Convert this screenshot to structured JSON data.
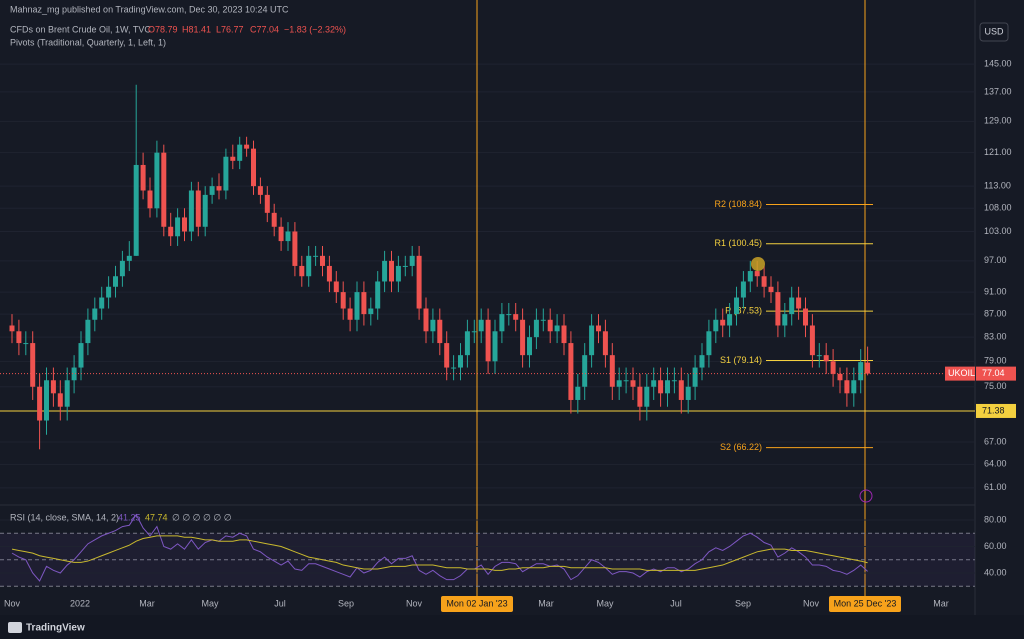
{
  "header": {
    "publisher": "Mahnaz_mg published on TradingView.com, Dec 30, 2023 10:24 UTC",
    "brand": "TradingView"
  },
  "chart_data": [
    {
      "type": "candlestick",
      "title": "CFDs on Brent Crude Oil, 1W, TVC",
      "ohlc_labels": [
        "O78.79",
        "H81.41",
        "L76.77",
        "C77.04"
      ],
      "change_label": "−1.83 (−2.32%)",
      "indicator": "Pivots (Traditional, Quarterly, 1, Left, 1)",
      "currency": "USD",
      "symbol": "UKOIL",
      "log_scale": true,
      "up_color": "#26a69a",
      "down_color": "#ef5350",
      "open": [
        85,
        84,
        82,
        82,
        75,
        70,
        76,
        74,
        72,
        76,
        78,
        82,
        86,
        88,
        90,
        92,
        94,
        97,
        98,
        118,
        112,
        108,
        121,
        104,
        102,
        106,
        103,
        112,
        104,
        111,
        113,
        112,
        120,
        119,
        123,
        122,
        113,
        111,
        107,
        104,
        101,
        103,
        96,
        94,
        98,
        98,
        96,
        93,
        91,
        88,
        86,
        91,
        87,
        88,
        93,
        97,
        93,
        96,
        96,
        98,
        88,
        84,
        86,
        82,
        78,
        78,
        80,
        84,
        84,
        86,
        79,
        84,
        87,
        87,
        86,
        80,
        83,
        86,
        86,
        84,
        85,
        82,
        73,
        75,
        80,
        85,
        84,
        80,
        75,
        76,
        76,
        75,
        72,
        75,
        76,
        74,
        76,
        76,
        73,
        75,
        78,
        80,
        84,
        86,
        85,
        87,
        90,
        93,
        95,
        94,
        92,
        91,
        85,
        87,
        90,
        88,
        85,
        80,
        80,
        79,
        77,
        76,
        74,
        76,
        78.79
      ],
      "high": [
        87,
        86,
        84,
        84,
        77,
        78,
        78,
        76,
        78,
        80,
        84,
        88,
        90,
        92,
        94,
        96,
        99,
        101,
        139,
        121,
        115,
        124,
        123,
        107,
        108,
        108,
        114,
        114,
        113,
        115,
        116,
        122,
        123,
        125,
        125,
        124,
        115,
        113,
        109,
        106,
        105,
        105,
        98,
        100,
        100,
        100,
        98,
        95,
        93,
        90,
        93,
        93,
        90,
        95,
        99,
        99,
        98,
        98,
        100,
        100,
        90,
        88,
        88,
        84,
        80,
        82,
        86,
        86,
        88,
        88,
        86,
        89,
        89,
        89,
        88,
        85,
        88,
        88,
        88,
        87,
        87,
        84,
        77,
        82,
        87,
        87,
        86,
        82,
        78,
        78,
        78,
        77,
        77,
        78,
        78,
        78,
        78,
        78,
        77,
        80,
        82,
        86,
        88,
        88,
        89,
        92,
        95,
        97,
        97,
        96,
        94,
        93,
        89,
        92,
        92,
        90,
        87,
        82,
        82,
        81,
        78,
        78,
        78,
        81,
        81.41
      ],
      "low": [
        82,
        80,
        80,
        73,
        66,
        68,
        72,
        70,
        70,
        74,
        76,
        80,
        84,
        86,
        88,
        90,
        92,
        95,
        98,
        110,
        106,
        106,
        102,
        100,
        100,
        101,
        101,
        102,
        102,
        109,
        110,
        110,
        117,
        117,
        120,
        111,
        109,
        105,
        102,
        99,
        99,
        94,
        92,
        92,
        96,
        94,
        91,
        89,
        86,
        84,
        84,
        85,
        85,
        86,
        91,
        91,
        91,
        94,
        94,
        86,
        82,
        82,
        80,
        76,
        76,
        76,
        78,
        82,
        82,
        77,
        77,
        82,
        85,
        84,
        78,
        78,
        81,
        84,
        82,
        82,
        80,
        71,
        71,
        73,
        78,
        82,
        78,
        73,
        73,
        74,
        73,
        70,
        70,
        73,
        72,
        72,
        74,
        71,
        71,
        73,
        76,
        78,
        82,
        83,
        83,
        85,
        88,
        91,
        92,
        90,
        89,
        83,
        83,
        85,
        86,
        83,
        78,
        78,
        77,
        75,
        74,
        72,
        72,
        74,
        76.77
      ],
      "close": [
        84,
        82,
        82,
        75,
        70,
        76,
        74,
        72,
        76,
        78,
        82,
        86,
        88,
        90,
        92,
        94,
        97,
        98,
        118,
        112,
        108,
        121,
        104,
        102,
        106,
        103,
        112,
        104,
        111,
        113,
        112,
        120,
        119,
        123,
        122,
        113,
        111,
        107,
        104,
        101,
        103,
        96,
        94,
        98,
        98,
        96,
        93,
        91,
        88,
        86,
        91,
        87,
        88,
        93,
        97,
        93,
        96,
        96,
        98,
        88,
        84,
        86,
        82,
        78,
        78,
        80,
        84,
        84,
        86,
        79,
        84,
        87,
        87,
        86,
        80,
        83,
        86,
        86,
        84,
        85,
        82,
        73,
        75,
        80,
        85,
        84,
        80,
        75,
        76,
        76,
        75,
        72,
        75,
        76,
        74,
        76,
        76,
        73,
        75,
        78,
        80,
        84,
        86,
        85,
        87,
        90,
        93,
        95,
        94,
        92,
        91,
        85,
        87,
        90,
        88,
        85,
        80,
        80,
        79,
        77,
        76,
        74,
        76,
        78.87,
        77.04
      ],
      "ylim": [
        58.9,
        165.3
      ],
      "yticks": [
        {
          "value": 145,
          "label": "145.00"
        },
        {
          "value": 137,
          "label": "137.00"
        },
        {
          "value": 129,
          "label": "129.00"
        },
        {
          "value": 121,
          "label": "121.00"
        },
        {
          "value": 113,
          "label": "113.00"
        },
        {
          "value": 108,
          "label": "108.00"
        },
        {
          "value": 103,
          "label": "103.00"
        },
        {
          "value": 97,
          "label": "97.00"
        },
        {
          "value": 91,
          "label": "91.00"
        },
        {
          "value": 87,
          "label": "87.00"
        },
        {
          "value": 83,
          "label": "83.00"
        },
        {
          "value": 79,
          "label": "79.00"
        },
        {
          "value": 75,
          "label": "75.00"
        },
        {
          "value": 67,
          "label": "67.00"
        },
        {
          "value": 64,
          "label": "64.00"
        },
        {
          "value": 61,
          "label": "61.00"
        }
      ],
      "xticks": [
        "Nov",
        "2022",
        "Mar",
        "May",
        "Jul",
        "Sep",
        "Nov",
        "Mar",
        "May",
        "Jul",
        "Sep",
        "Nov",
        "Mar"
      ],
      "date_markers": [
        "Mon 02 Jan '23",
        "Mon 25 Dec '23"
      ],
      "horizontal_line": 71.38,
      "pivots": [
        {
          "value": 108.84,
          "label": "R2 (108.84)",
          "color": "#f7a21b"
        },
        {
          "value": 100.45,
          "label": "R1 (100.45)",
          "color": "#f4d03f"
        },
        {
          "value": 87.53,
          "label": "P (87.53)",
          "color": "#f4d03f"
        },
        {
          "value": 79.14,
          "label": "S1 (79.14)",
          "color": "#f4d03f"
        },
        {
          "value": 66.22,
          "label": "S2 (66.22)",
          "color": "#f7a21b"
        }
      ]
    },
    {
      "type": "line",
      "title": "RSI (14, close, SMA, 14, 2)",
      "extra_values": "∅ ∅ ∅ ∅ ∅ ∅",
      "series": [
        {
          "name": "RSI",
          "color": "#7e57c2",
          "values": [
            55,
            52,
            50,
            40,
            34,
            45,
            42,
            40,
            46,
            50,
            56,
            62,
            65,
            68,
            70,
            72,
            75,
            76,
            84,
            74,
            68,
            75,
            60,
            58,
            62,
            58,
            65,
            58,
            63,
            65,
            64,
            68,
            67,
            70,
            68,
            58,
            56,
            52,
            49,
            46,
            49,
            43,
            42,
            47,
            47,
            45,
            43,
            41,
            39,
            37,
            44,
            40,
            42,
            48,
            52,
            47,
            51,
            51,
            53,
            42,
            39,
            42,
            38,
            35,
            35,
            38,
            43,
            43,
            46,
            39,
            45,
            48,
            48,
            47,
            41,
            44,
            47,
            47,
            45,
            46,
            43,
            35,
            38,
            44,
            50,
            48,
            44,
            39,
            41,
            41,
            40,
            37,
            41,
            43,
            41,
            44,
            44,
            41,
            43,
            47,
            50,
            56,
            59,
            57,
            60,
            64,
            68,
            70,
            67,
            63,
            61,
            52,
            55,
            59,
            56,
            52,
            46,
            46,
            45,
            42,
            41,
            39,
            42,
            46,
            41.25
          ]
        },
        {
          "name": "SMA",
          "color": "#c9b92e",
          "values": [
            58,
            57,
            56,
            55,
            53,
            52,
            51,
            50,
            49,
            48,
            48,
            49,
            51,
            53,
            55,
            57,
            59,
            61,
            64,
            66,
            67,
            68,
            68,
            68,
            68,
            67,
            67,
            66,
            65,
            65,
            64,
            64,
            64,
            65,
            65,
            64,
            63,
            62,
            61,
            60,
            58,
            56,
            54,
            52,
            51,
            50,
            49,
            48,
            46,
            45,
            44,
            43,
            43,
            43,
            44,
            45,
            45,
            45,
            46,
            46,
            46,
            46,
            45,
            44,
            44,
            44,
            43,
            43,
            43,
            43,
            42,
            42,
            43,
            43,
            44,
            44,
            44,
            44,
            45,
            45,
            45,
            44,
            44,
            44,
            44,
            44,
            44,
            43,
            43,
            43,
            43,
            43,
            42,
            42,
            42,
            42,
            42,
            42,
            42,
            42,
            43,
            44,
            45,
            46,
            48,
            50,
            52,
            54,
            56,
            57,
            58,
            58,
            58,
            57,
            57,
            57,
            56,
            55,
            54,
            53,
            52,
            51,
            50,
            49,
            47.74
          ]
        }
      ],
      "ylim": [
        21.9,
        91.3
      ],
      "band_levels": [
        70,
        50,
        30
      ],
      "yticks": [
        {
          "value": 80,
          "label": "80.00"
        },
        {
          "value": 60,
          "label": "60.00"
        },
        {
          "value": 40,
          "label": "40.00"
        }
      ]
    }
  ]
}
